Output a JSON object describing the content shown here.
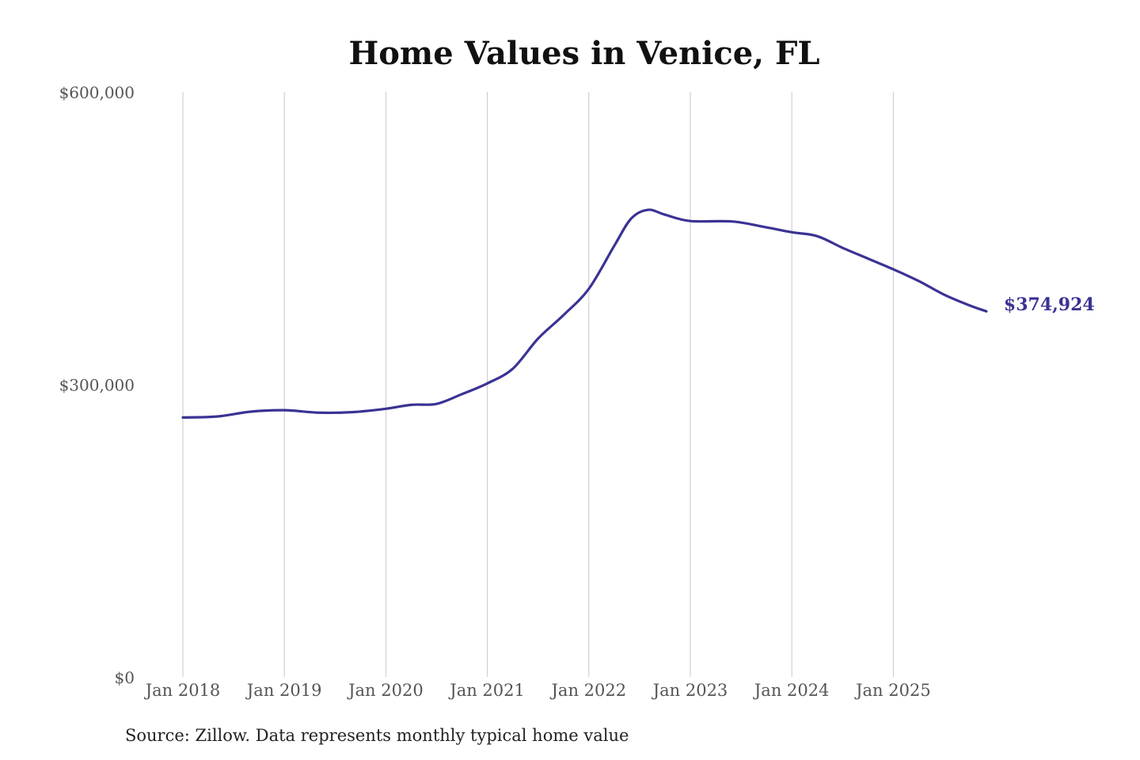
{
  "chart_data": {
    "type": "line",
    "title": "Home Values in Venice, FL",
    "source": "Source: Zillow. Data represents monthly typical home value",
    "xlabel": "",
    "ylabel": "",
    "ylim": [
      0,
      600000
    ],
    "y_ticks": [
      {
        "value": 0,
        "label": "$0"
      },
      {
        "value": 300000,
        "label": "$300,000"
      },
      {
        "value": 600000,
        "label": "$600,000"
      }
    ],
    "x_ticks": [
      {
        "value": "2018-01",
        "label": "Jan 2018"
      },
      {
        "value": "2019-01",
        "label": "Jan 2019"
      },
      {
        "value": "2020-01",
        "label": "Jan 2020"
      },
      {
        "value": "2021-01",
        "label": "Jan 2021"
      },
      {
        "value": "2022-01",
        "label": "Jan 2022"
      },
      {
        "value": "2023-01",
        "label": "Jan 2023"
      },
      {
        "value": "2024-01",
        "label": "Jan 2024"
      },
      {
        "value": "2025-01",
        "label": "Jan 2025"
      }
    ],
    "grid": "vertical",
    "line_color": "#3a3394",
    "end_label": "$374,924",
    "series": [
      {
        "x": [
          "2018-01",
          "2018-05",
          "2018-09",
          "2019-01",
          "2019-05",
          "2019-09",
          "2020-01",
          "2020-04",
          "2020-07",
          "2020-10",
          "2021-01",
          "2021-04",
          "2021-07",
          "2021-10",
          "2022-01",
          "2022-04",
          "2022-06",
          "2022-08",
          "2022-10",
          "2023-01",
          "2023-06",
          "2023-10",
          "2024-01",
          "2024-04",
          "2024-07",
          "2024-10",
          "2025-01",
          "2025-04",
          "2025-07",
          "2025-10",
          "2025-12"
        ],
        "values": [
          266000,
          267000,
          272000,
          273500,
          271000,
          271500,
          275000,
          279000,
          280000,
          290000,
          301000,
          316000,
          347000,
          371000,
          398000,
          442000,
          470000,
          479000,
          474000,
          467500,
          467000,
          461000,
          456000,
          452000,
          440000,
          429000,
          418000,
          406000,
          392000,
          381000,
          374924
        ]
      }
    ]
  }
}
